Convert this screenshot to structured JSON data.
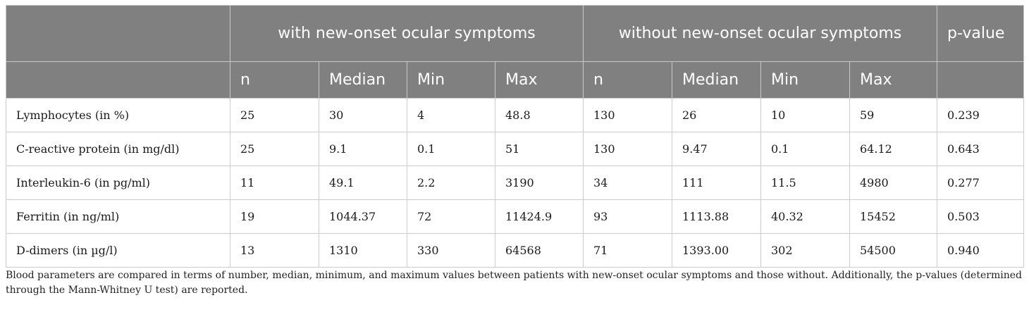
{
  "table": {
    "group_headers": {
      "with": "with new-onset ocular symptoms",
      "without": "without new-onset ocular symptoms",
      "pvalue": "p-value"
    },
    "sub_headers": [
      "n",
      "Median",
      "Min",
      "Max",
      "n",
      "Median",
      "Min",
      "Max"
    ],
    "rows": [
      [
        "Lymphocytes (in %)",
        "25",
        "30",
        "4",
        "48.8",
        "130",
        "26",
        "10",
        "59",
        "0.239"
      ],
      [
        "C-reactive protein (in mg/dl)",
        "25",
        "9.1",
        "0.1",
        "51",
        "130",
        "9.47",
        "0.1",
        "64.12",
        "0.643"
      ],
      [
        "Interleukin-6 (in pg/ml)",
        "11",
        "49.1",
        "2.2",
        "3190",
        "34",
        "111",
        "11.5",
        "4980",
        "0.277"
      ],
      [
        "Ferritin (in ng/ml)",
        "19",
        "1044.37",
        "72",
        "11424.9",
        "93",
        "1113.88",
        "40.32",
        "15452",
        "0.503"
      ],
      [
        "D-dimers (in µg/l)",
        "13",
        "1310",
        "330",
        "64568",
        "71",
        "1393.00",
        "302",
        "54500",
        "0.940"
      ]
    ]
  },
  "caption": "Blood parameters are compared in terms of number, median, minimum, and maximum values between patients with new-onset ocular symptoms and those without. Additionally, the p-values (determined through the Mann-Whitney U test) are reported."
}
